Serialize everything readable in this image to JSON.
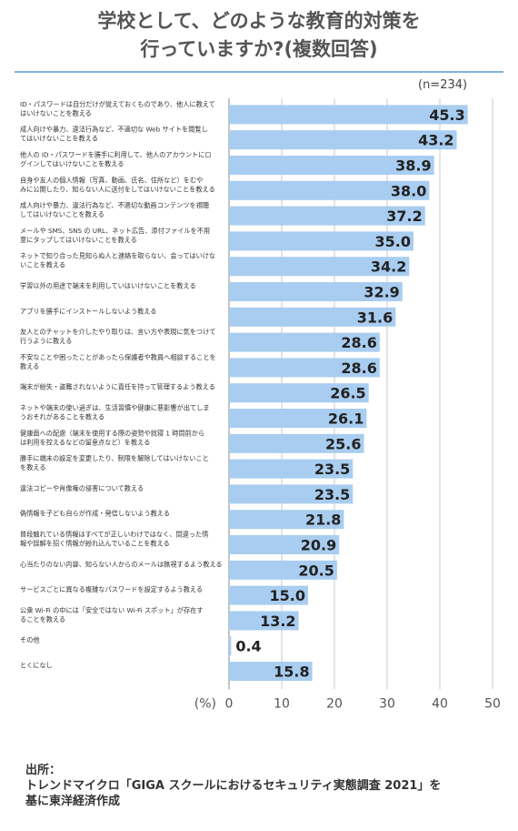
{
  "title_line1": "学校として、どのような教育的対策を",
  "title_line2": "行っていますか?(複数回答)",
  "sample_size": "(n=234)",
  "source": {
    "label": "出所：",
    "line1": "トレンドマイクロ「GIGA スクールにおけるセキュリティ実態調査 2021」を",
    "line2": "基に東洋経済作成"
  },
  "colors": {
    "bar": "#a8cdf0",
    "grid": "#c9c9c9",
    "axis": "#888888",
    "title_rule": "#7db3df"
  },
  "chart_data": {
    "type": "bar",
    "orientation": "horizontal",
    "unit_label": "(%)",
    "xlim": [
      0,
      50
    ],
    "ticks": [
      0,
      10,
      20,
      30,
      40,
      50
    ],
    "grid": true,
    "categories": [
      [
        "ID・パスワードは自分だけが覚えておくものであり、他人に教えて",
        "はいけないことを教える"
      ],
      [
        "成人向けや暴力、違法行為など、不適切な Web サイトを閲覧し",
        "てはいけないことを教える"
      ],
      [
        "他人の ID・パスワードを勝手に利用して、他人のアカウントにロ",
        "グインしてはいけないことを教える"
      ],
      [
        "自身や友人の個人情報（写真、動画、氏名、住所など）をむや",
        "みに公開したり、知らない人に送付をしてはいけないことを教える"
      ],
      [
        "成人向けや暴力、違法行為など、不適切な動画コンテンツを視聴",
        "してはいけないことを教える"
      ],
      [
        "メールや SMS、SNS の URL、ネット広告、添付ファイルを不用",
        "意にタップしてはいけないことを教える"
      ],
      [
        "ネットで知り合った見知らぬ人と連絡を取らない、会ってはいけな",
        "いことを教える"
      ],
      [
        "学習以外の用途で端末を利用していはいけないことを教える"
      ],
      [
        "アプリを勝手にインストールしないよう教える"
      ],
      [
        "友人とのチャットを介したやり取りは、言い方や表現に気をつけて",
        "行うように教える"
      ],
      [
        "不安なことや困ったことがあったら保護者や教員へ相談することを",
        "教える"
      ],
      [
        "端末が紛失・盗難されないように責任を持って管理するよう教える"
      ],
      [
        "ネットや端末の使い過ぎは、生活習慣や健康に悪影響が出てしま",
        "うおそれがあることを教える"
      ],
      [
        "健康面への配慮（端末を使用する際の姿勢や就寝 1 時間前から",
        "は利用を控えるなどの留意点など）を教える"
      ],
      [
        "勝手に端末の設定を変更したり、制限を解除してはいけないこと",
        "を教える"
      ],
      [
        "違法コピーや肖像権の侵害について教える"
      ],
      [
        "偽情報を子ども自らが作成・発信しないよう教える"
      ],
      [
        "普段触れている情報はすべてが正しいわけではなく、間違った情",
        "報や誤解を招く情報が紛れ込んでいることを教える"
      ],
      [
        "心当たりのない内容、知らない人からのメールは無視するよう教える"
      ],
      [
        "サービスごとに異なる複雑なパスワードを設定するよう教える"
      ],
      [
        "公衆 Wi-Fi の中には「安全ではない Wi-Fi スポット」が存在す",
        "ることを教える"
      ],
      [
        "その他"
      ],
      [
        "とくになし"
      ]
    ],
    "values": [
      45.3,
      43.2,
      38.9,
      38.0,
      37.2,
      35.0,
      34.2,
      32.9,
      31.6,
      28.6,
      28.6,
      26.5,
      26.1,
      25.6,
      23.5,
      23.5,
      21.8,
      20.9,
      20.5,
      15.0,
      13.2,
      0.4,
      15.8
    ],
    "value_labels": [
      "45.3",
      "43.2",
      "38.9",
      "38.0",
      "37.2",
      "35.0",
      "34.2",
      "32.9",
      "31.6",
      "28.6",
      "28.6",
      "26.5",
      "26.1",
      "25.6",
      "23.5",
      "23.5",
      "21.8",
      "20.9",
      "20.5",
      "15.0",
      "13.2",
      "0.4",
      "15.8"
    ]
  }
}
